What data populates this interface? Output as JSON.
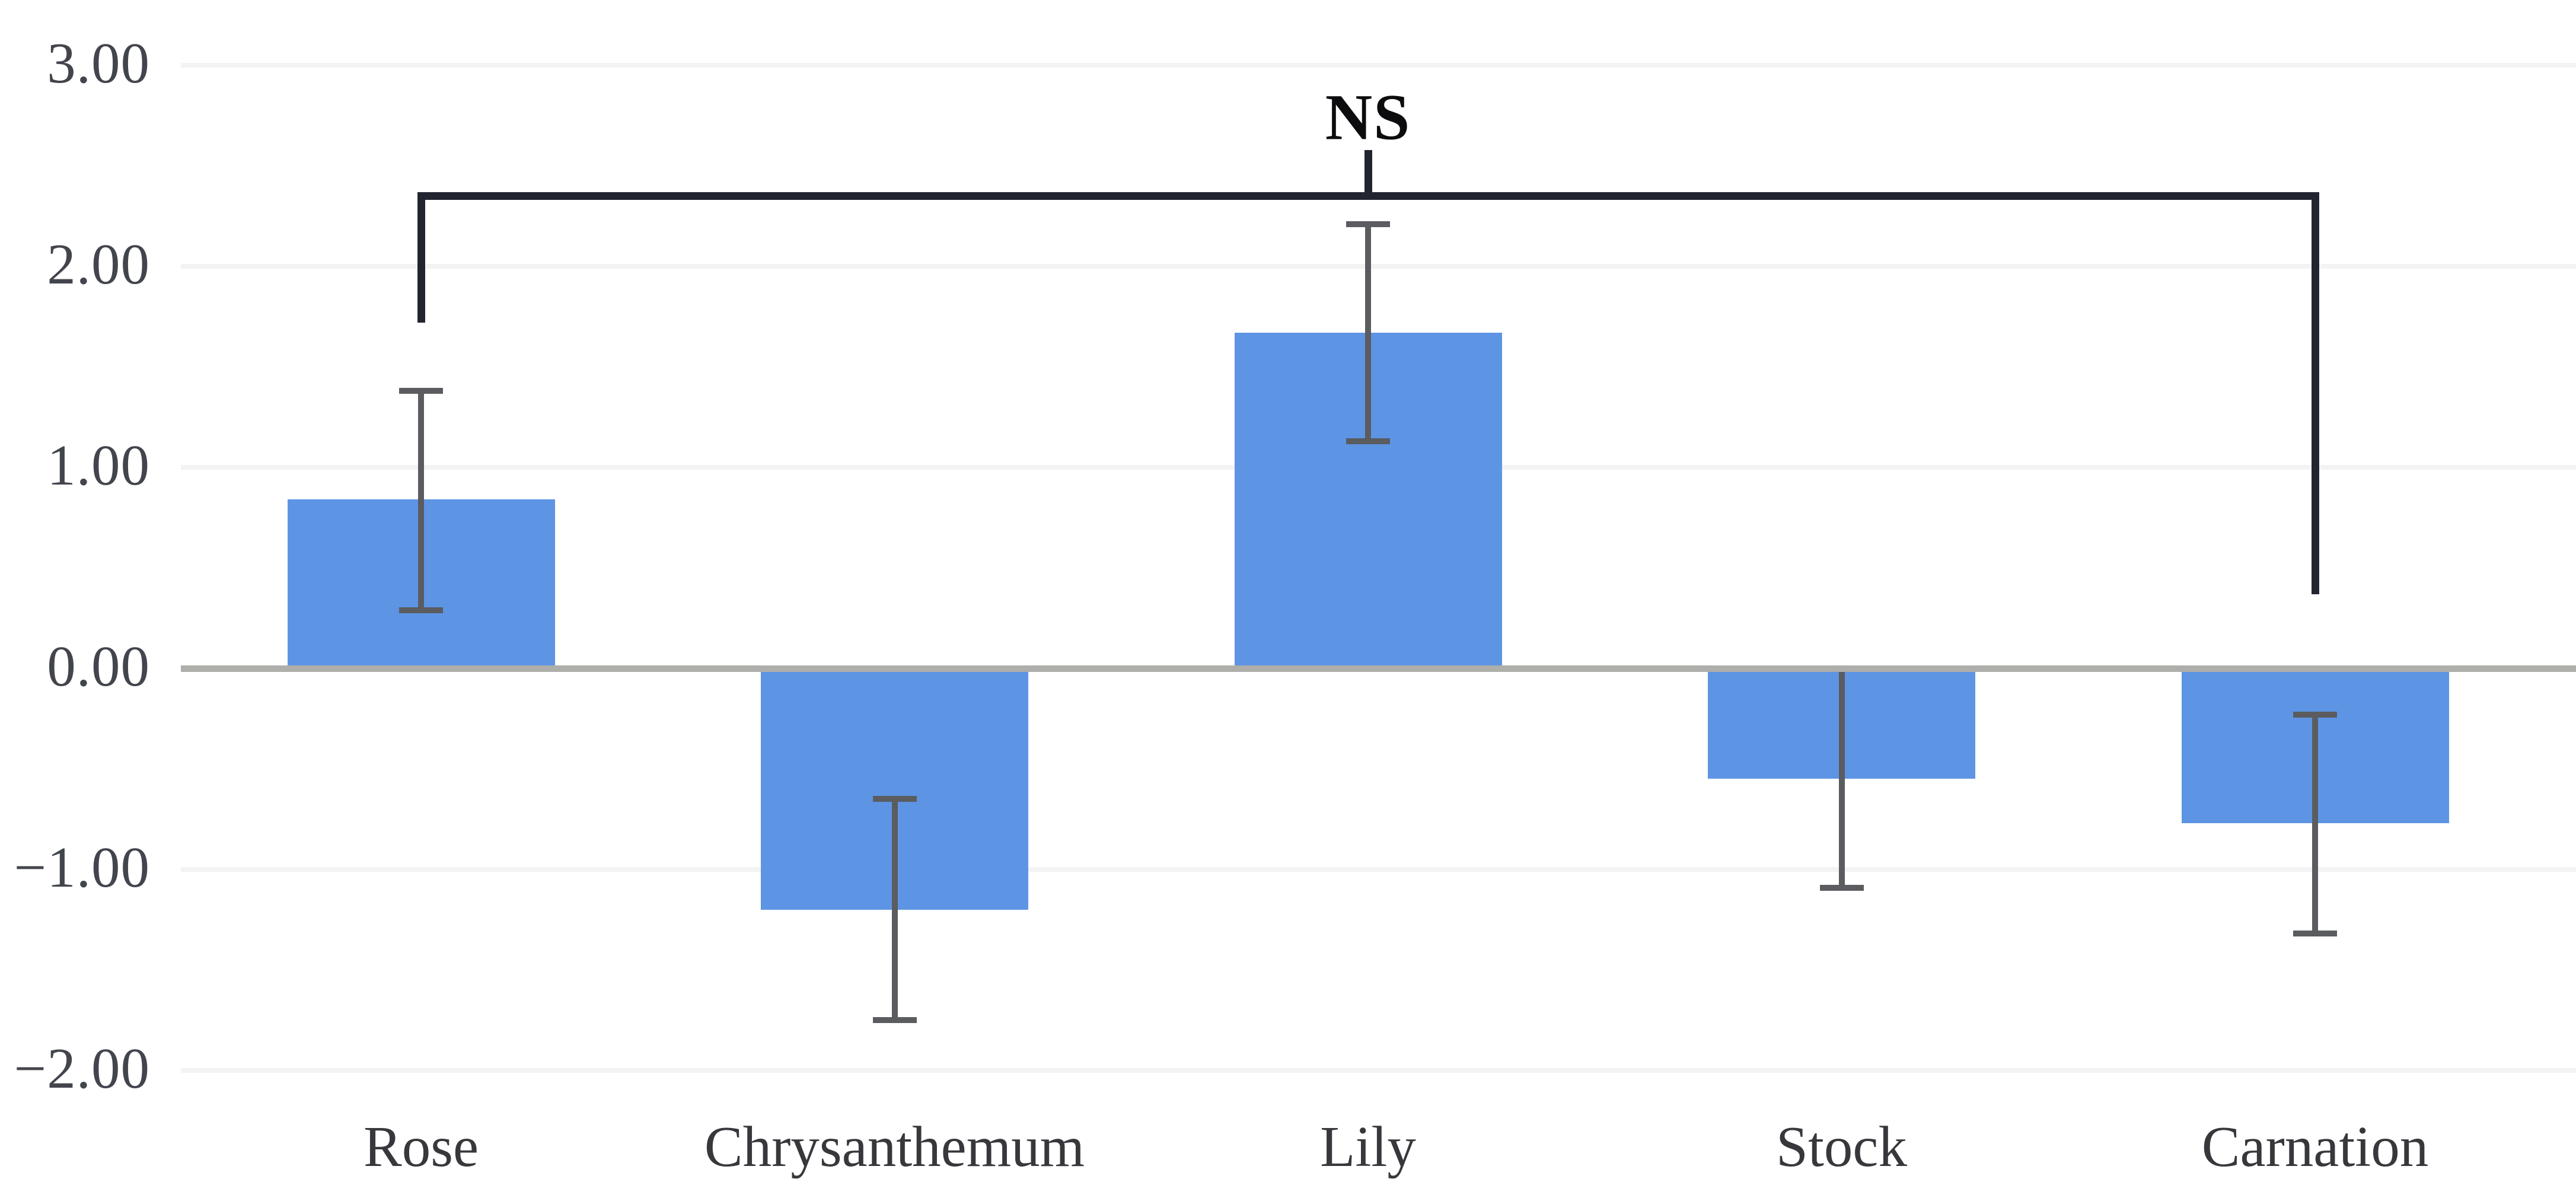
{
  "chart_data": {
    "type": "bar",
    "title": "",
    "xlabel": "",
    "ylabel": "",
    "categories": [
      "Rose",
      "Chrysanthemum",
      "Lily",
      "Stock",
      "Carnation"
    ],
    "values": [
      0.84,
      -1.2,
      1.67,
      -0.55,
      -0.77
    ],
    "error_whisker_high": [
      1.38,
      -0.65,
      2.21,
      0.0,
      -0.23
    ],
    "error_whisker_low": [
      0.29,
      -1.75,
      1.13,
      -1.09,
      -1.32
    ],
    "y_ticks": [
      "3.00",
      "2.00",
      "1.00",
      "0.00",
      "−1.00",
      "−2.00"
    ],
    "y_tick_values": [
      3,
      2,
      1,
      0,
      -1,
      -2
    ],
    "ylim": [
      -2.35,
      3.15
    ],
    "grid": true,
    "legend_position": "none",
    "annotation": {
      "label": "NS",
      "from": "Rose",
      "to": "Carnation",
      "bar_value": 2.35,
      "left_leg_end_value": 1.7,
      "right_leg_end_value": 0.35,
      "label_value": 2.74
    },
    "colors": {
      "bar_fill": "#5e94e4",
      "error_bar": "#5a5c5f",
      "gridline": "#f3f3f3",
      "axis_line": "#aeaeaa",
      "bracket": "#22252f",
      "tick_label": "#43454d",
      "category_label": "#37383c",
      "annotation_label": "#0c0c0e"
    }
  }
}
